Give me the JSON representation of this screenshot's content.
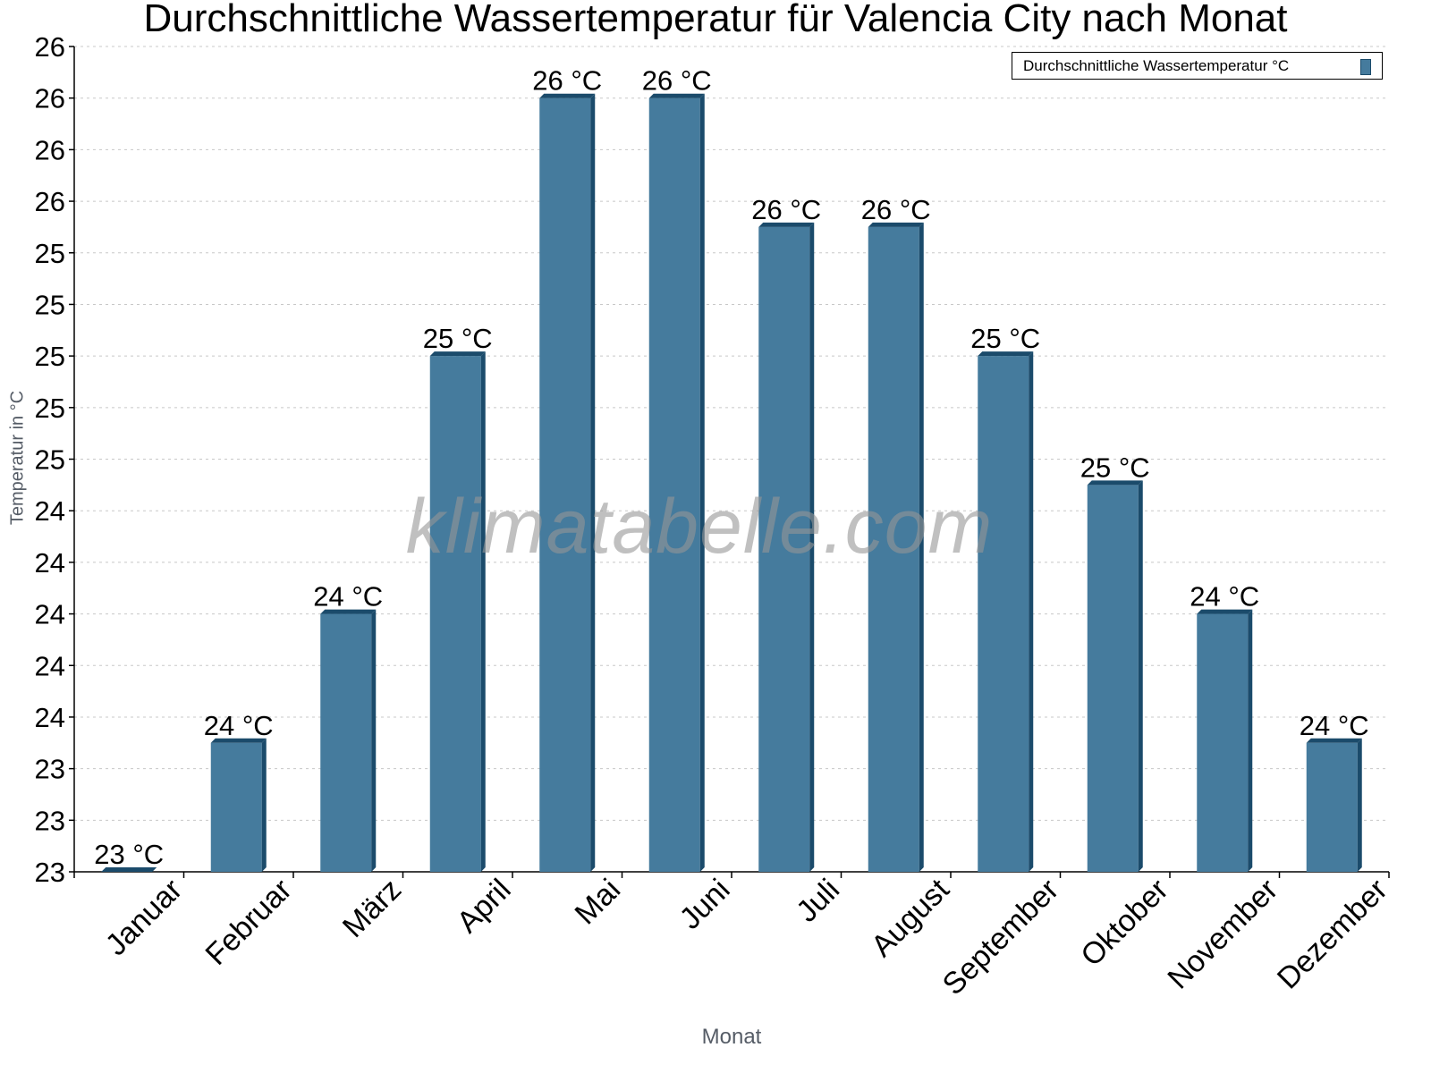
{
  "chart_data": {
    "type": "bar",
    "title": "Durchschnittliche Wassertemperatur für Valencia City nach Monat",
    "xlabel": "Monat",
    "ylabel": "Temperatur in °C",
    "categories": [
      "Januar",
      "Februar",
      "März",
      "April",
      "Mai",
      "Juni",
      "Juli",
      "August",
      "September",
      "Oktober",
      "November",
      "Dezember"
    ],
    "series": [
      {
        "name": "Durchschnittliche Wassertemperatur °C",
        "values": [
          23.0,
          23.5,
          24.0,
          25.0,
          26.0,
          26.0,
          25.5,
          25.5,
          25.0,
          24.5,
          24.0,
          23.5
        ]
      }
    ],
    "data_labels": [
      "23 °C",
      "24 °C",
      "24 °C",
      "25 °C",
      "26 °C",
      "26 °C",
      "26 °C",
      "26 °C",
      "25 °C",
      "25 °C",
      "24 °C",
      "24 °C"
    ],
    "ylim": [
      23.0,
      26.2
    ],
    "ytick_values": [
      23.0,
      23.2,
      23.4,
      23.6,
      23.8,
      24.0,
      24.2,
      24.4,
      24.6,
      24.8,
      25.0,
      25.2,
      25.4,
      25.6,
      25.8,
      26.0,
      26.2
    ],
    "ytick_labels": [
      "23",
      "23",
      "23",
      "24",
      "24",
      "24",
      "24",
      "24",
      "25",
      "25",
      "25",
      "25",
      "25",
      "26",
      "26",
      "26",
      "26"
    ],
    "grid": true,
    "legend_position": "top-right",
    "colors": {
      "bar_face": "#457b9d",
      "bar_side": "#1b4b6b",
      "grid": "#c8c8c8"
    }
  },
  "watermark": "klimatabelle.com"
}
